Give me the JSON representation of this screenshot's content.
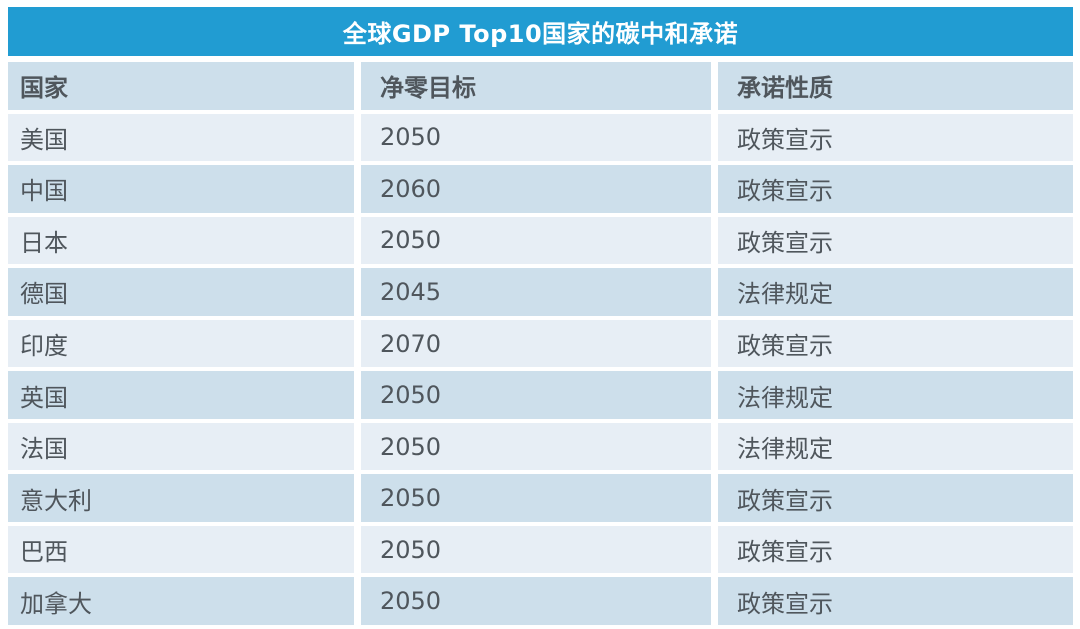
{
  "chart_data": {
    "type": "table",
    "title": "全球GDP Top10国家的碳中和承诺",
    "columns": [
      "国家",
      "净零目标",
      "承诺性质"
    ],
    "rows": [
      [
        "美国",
        "2050",
        "政策宣示"
      ],
      [
        "中国",
        "2060",
        "政策宣示"
      ],
      [
        "日本",
        "2050",
        "政策宣示"
      ],
      [
        "德国",
        "2045",
        "法律规定"
      ],
      [
        "印度",
        "2070",
        "政策宣示"
      ],
      [
        "英国",
        "2050",
        "法律规定"
      ],
      [
        "法国",
        "2050",
        "法律规定"
      ],
      [
        "意大利",
        "2050",
        "政策宣示"
      ],
      [
        "巴西",
        "2050",
        "政策宣示"
      ],
      [
        "加拿大",
        "2050",
        "政策宣示"
      ]
    ],
    "layout_hints": {
      "row_striping": "header and even data rows dark, odd data rows light",
      "column_alignment": "left"
    }
  },
  "colors": {
    "background": "#ffffff",
    "title_bg": "#219cd2",
    "title_text": "#ffffff",
    "row_dark": "#cddfeb",
    "row_light": "#e7eef5",
    "cell_text": "#4f565c"
  }
}
